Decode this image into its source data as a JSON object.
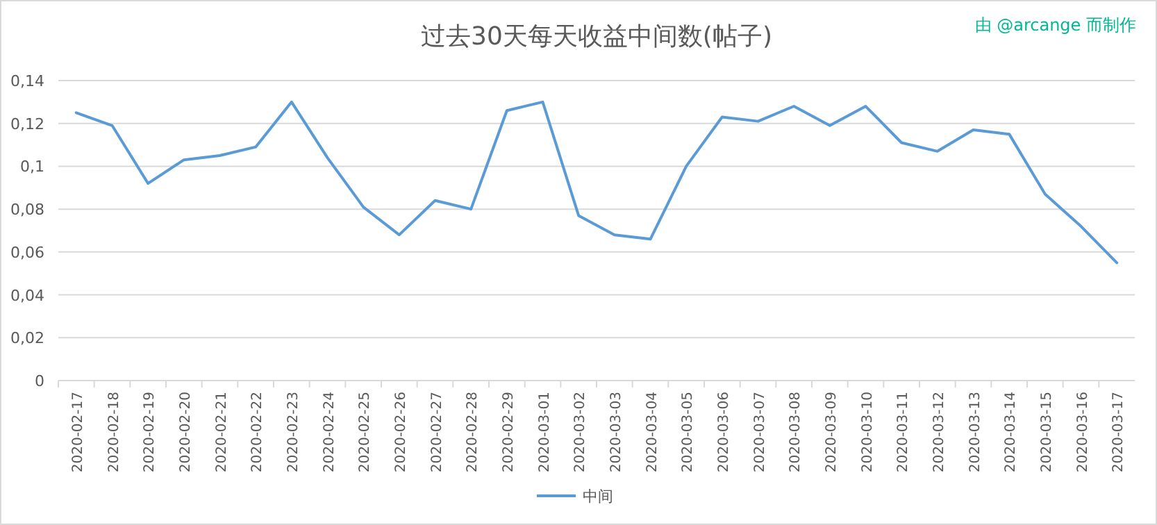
{
  "chart_data": {
    "type": "line",
    "title": "过去30天每天收益中间数(帖子)",
    "annotations": [
      "由 @arcange 而制作"
    ],
    "categories": [
      "2020-02-17",
      "2020-02-18",
      "2020-02-19",
      "2020-02-20",
      "2020-02-21",
      "2020-02-22",
      "2020-02-23",
      "2020-02-24",
      "2020-02-25",
      "2020-02-26",
      "2020-02-27",
      "2020-02-28",
      "2020-02-29",
      "2020-03-01",
      "2020-03-02",
      "2020-03-03",
      "2020-03-04",
      "2020-03-05",
      "2020-03-06",
      "2020-03-07",
      "2020-03-08",
      "2020-03-09",
      "2020-03-10",
      "2020-03-11",
      "2020-03-12",
      "2020-03-13",
      "2020-03-14",
      "2020-03-15",
      "2020-03-16",
      "2020-03-17"
    ],
    "series": [
      {
        "name": "中间",
        "color": "#5b9bd5",
        "values": [
          0.125,
          0.119,
          0.092,
          0.103,
          0.105,
          0.109,
          0.13,
          0.104,
          0.081,
          0.068,
          0.084,
          0.08,
          0.126,
          0.13,
          0.077,
          0.068,
          0.066,
          0.1,
          0.123,
          0.121,
          0.128,
          0.119,
          0.128,
          0.111,
          0.107,
          0.117,
          0.115,
          0.087,
          0.072,
          0.055
        ]
      }
    ],
    "ylim": [
      0,
      0.14
    ],
    "yticks": [
      {
        "value": 0,
        "label": "0"
      },
      {
        "value": 0.02,
        "label": "0,02"
      },
      {
        "value": 0.04,
        "label": "0,04"
      },
      {
        "value": 0.06,
        "label": "0,06"
      },
      {
        "value": 0.08,
        "label": "0,08"
      },
      {
        "value": 0.1,
        "label": "0,1"
      },
      {
        "value": 0.12,
        "label": "0,12"
      },
      {
        "value": 0.14,
        "label": "0,14"
      }
    ],
    "grid": "y",
    "legend": "bottom",
    "marker": "none",
    "line_style": "solid"
  }
}
